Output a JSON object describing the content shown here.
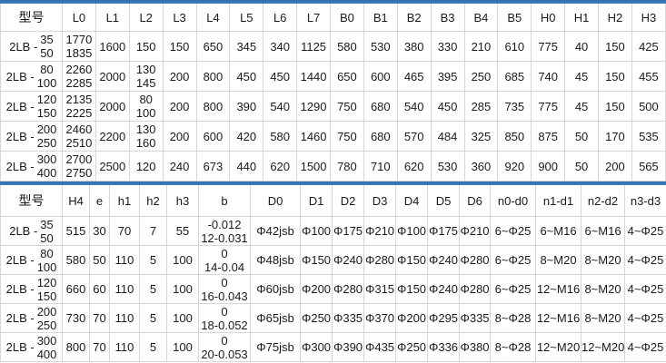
{
  "accent_color": "#3474b4",
  "grid_color": "#d6d6d6",
  "chart_data": [
    {
      "type": "table",
      "title": "2LB series dimensions - upper table",
      "model_header": "型号",
      "headers": [
        "L0",
        "L1",
        "L2",
        "L3",
        "L4",
        "L5",
        "L6",
        "L7",
        "B0",
        "B1",
        "B2",
        "B3",
        "B4",
        "B5",
        "H0",
        "H1",
        "H2",
        "H3"
      ],
      "rows": [
        {
          "model": {
            "prefix": "2LB -",
            "upper": "35",
            "lower": "50"
          },
          "cells": [
            "1770\n1835",
            "1600",
            "150",
            "150",
            "650",
            "345",
            "340",
            "1125",
            "580",
            "530",
            "380",
            "330",
            "210",
            "610",
            "775",
            "40",
            "150",
            "425"
          ]
        },
        {
          "model": {
            "prefix": "2LB -",
            "upper": "80",
            "lower": "100"
          },
          "cells": [
            "2260\n2285",
            "2000",
            "130\n145",
            "200",
            "800",
            "450",
            "450",
            "1440",
            "650",
            "600",
            "465",
            "395",
            "250",
            "685",
            "740",
            "45",
            "150",
            "455"
          ]
        },
        {
          "model": {
            "prefix": "2LB -",
            "upper": "120",
            "lower": "150"
          },
          "cells": [
            "2135\n2225",
            "2000",
            "80\n100",
            "200",
            "800",
            "390",
            "540",
            "1290",
            "750",
            "680",
            "540",
            "450",
            "285",
            "735",
            "775",
            "45",
            "150",
            "500"
          ]
        },
        {
          "model": {
            "prefix": "2LB -",
            "upper": "200",
            "lower": "250"
          },
          "cells": [
            "2460\n2510",
            "2200",
            "130\n160",
            "200",
            "600",
            "420",
            "580",
            "1460",
            "750",
            "680",
            "570",
            "484",
            "325",
            "850",
            "875",
            "50",
            "170",
            "535"
          ]
        },
        {
          "model": {
            "prefix": "2LB -",
            "upper": "300",
            "lower": "400"
          },
          "cells": [
            "2700\n2750",
            "2500",
            "120",
            "240",
            "673",
            "440",
            "620",
            "1500",
            "780",
            "710",
            "620",
            "530",
            "360",
            "920",
            "900",
            "50",
            "200",
            "565"
          ]
        }
      ]
    },
    {
      "type": "table",
      "title": "2LB series dimensions - lower table",
      "model_header": "型号",
      "headers": [
        "H4",
        "e",
        "h1",
        "h2",
        "h3",
        "b",
        "D0",
        "D1",
        "D2",
        "D3",
        "D4",
        "D5",
        "D6",
        "n0-d0",
        "n1-d1",
        "n2-d2",
        "n3-d3"
      ],
      "rows": [
        {
          "model": {
            "prefix": "2LB -",
            "upper": "35",
            "lower": "50"
          },
          "cells": [
            "515",
            "30",
            "70",
            "7",
            "55",
            "-0.012\n12-0.031",
            "Φ42jsb",
            "Φ100",
            "Φ175",
            "Φ210",
            "Φ100",
            "Φ175",
            "Φ210",
            "6~Φ25",
            "6~M16",
            "6~M16",
            "4~Φ25"
          ]
        },
        {
          "model": {
            "prefix": "2LB -",
            "upper": "80",
            "lower": "100"
          },
          "cells": [
            "580",
            "50",
            "110",
            "5",
            "100",
            "0\n14-0.04",
            "Φ48jsb",
            "Φ150",
            "Φ240",
            "Φ280",
            "Φ150",
            "Φ240",
            "Φ280",
            "6~Φ25",
            "8~M20",
            "8~M20",
            "4~Φ25"
          ]
        },
        {
          "model": {
            "prefix": "2LB -",
            "upper": "120",
            "lower": "150"
          },
          "cells": [
            "660",
            "60",
            "110",
            "5",
            "100",
            "0\n16-0.043",
            "Φ60jsb",
            "Φ200",
            "Φ280",
            "Φ315",
            "Φ150",
            "Φ240",
            "Φ280",
            "6~Φ25",
            "12~M16",
            "8~M20",
            "4~Φ25"
          ]
        },
        {
          "model": {
            "prefix": "2LB -",
            "upper": "200",
            "lower": "250"
          },
          "cells": [
            "730",
            "70",
            "110",
            "5",
            "100",
            "0\n18-0.052",
            "Φ65jsb",
            "Φ250",
            "Φ335",
            "Φ370",
            "Φ200",
            "Φ295",
            "Φ335",
            "8~Φ28",
            "12~M16",
            "8~M20",
            "4~Φ25"
          ]
        },
        {
          "model": {
            "prefix": "2LB -",
            "upper": "300",
            "lower": "400"
          },
          "cells": [
            "800",
            "70",
            "110",
            "5",
            "100",
            "0\n20-0.053",
            "Φ75jsb",
            "Φ300",
            "Φ390",
            "Φ435",
            "Φ250",
            "Φ336",
            "Φ380",
            "8~Φ28",
            "12~M20",
            "12~M20",
            "4~Φ25"
          ]
        }
      ]
    }
  ]
}
